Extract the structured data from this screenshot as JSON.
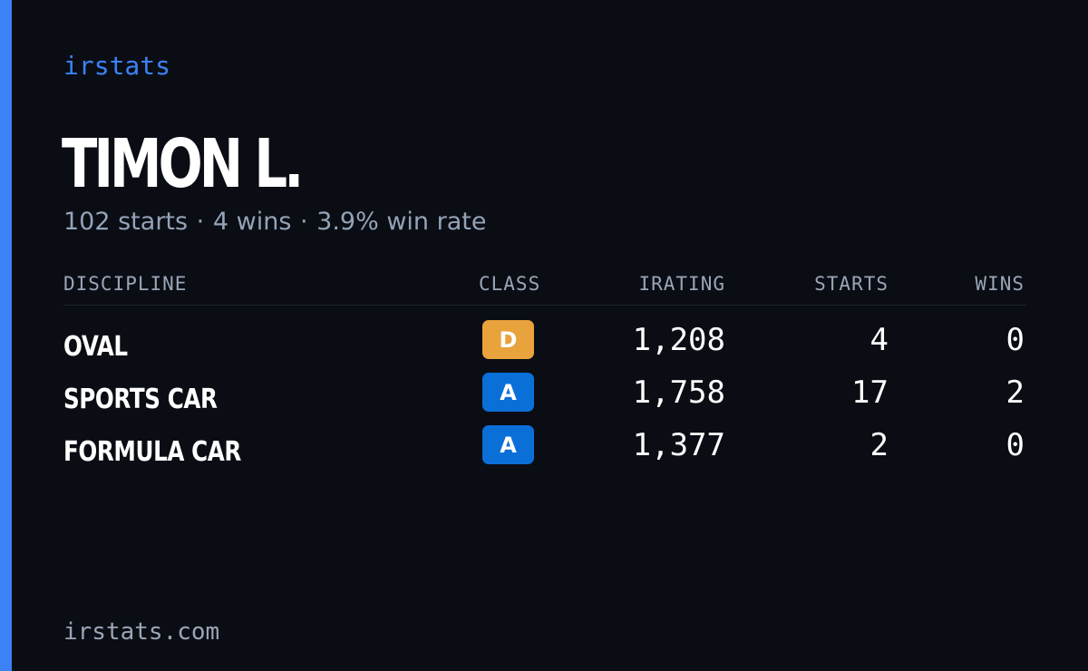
{
  "brand": "irstats",
  "driver": {
    "name": "TIMON L.",
    "summary": {
      "starts": "102 starts",
      "wins": "4 wins",
      "win_rate": "3.9% win rate",
      "separator": "·"
    }
  },
  "table": {
    "headers": {
      "discipline": "DISCIPLINE",
      "class": "CLASS",
      "irating": "IRATING",
      "starts": "STARTS",
      "wins": "WINS"
    },
    "rows": [
      {
        "discipline": "OVAL",
        "class": "D",
        "class_color": "#e8a33d",
        "irating": "1,208",
        "starts": "4",
        "wins": "0"
      },
      {
        "discipline": "SPORTS CAR",
        "class": "A",
        "class_color": "#0b6fd8",
        "irating": "1,758",
        "starts": "17",
        "wins": "2"
      },
      {
        "discipline": "FORMULA CAR",
        "class": "A",
        "class_color": "#0b6fd8",
        "irating": "1,377",
        "starts": "2",
        "wins": "0"
      }
    ]
  },
  "footer": {
    "url": "irstats.com"
  },
  "colors": {
    "background": "#0a0d14",
    "accent": "#3b82f6",
    "muted_text": "#94a3b8"
  }
}
